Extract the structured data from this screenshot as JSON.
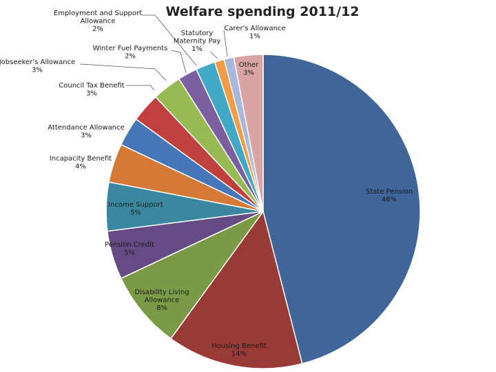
{
  "chart_data": {
    "type": "pie",
    "title": "Welfare spending 2011/12",
    "slices": [
      {
        "label": [
          "State Pension"
        ],
        "value": 46,
        "value_label": "46%",
        "color": "#3f6599"
      },
      {
        "label": [
          "Housing Benefit"
        ],
        "value": 14,
        "value_label": "14%",
        "color": "#9a3a37"
      },
      {
        "label": [
          "Disability Living",
          "Allowance"
        ],
        "value": 8,
        "value_label": "8%",
        "color": "#7b9a45"
      },
      {
        "label": [
          "Pension Credit"
        ],
        "value": 5,
        "value_label": "5%",
        "color": "#654b83"
      },
      {
        "label": [
          "Income Support"
        ],
        "value": 5,
        "value_label": "5%",
        "color": "#3a889f"
      },
      {
        "label": [
          "Incapacity Benefit"
        ],
        "value": 4,
        "value_label": "4%",
        "color": "#d57a35"
      },
      {
        "label": [
          "Attendance Allowance"
        ],
        "value": 3,
        "value_label": "3%",
        "color": "#4576b8"
      },
      {
        "label": [
          "Council Tax Benefit"
        ],
        "value": 3,
        "value_label": "3%",
        "color": "#c0403d"
      },
      {
        "label": [
          "Jobseeker's Allowance"
        ],
        "value": 3,
        "value_label": "3%",
        "color": "#98ba55"
      },
      {
        "label": [
          "Winter Fuel Payments"
        ],
        "value": 2,
        "value_label": "2%",
        "color": "#7c5fa0"
      },
      {
        "label": [
          "Employment and Support",
          "Allowance"
        ],
        "value": 2,
        "value_label": "2%",
        "color": "#41a9c5"
      },
      {
        "label": [
          "Statutory",
          "Maternity Pay"
        ],
        "value": 1,
        "value_label": "1%",
        "color": "#f39c45"
      },
      {
        "label": [
          "Carer's Allowance"
        ],
        "value": 1,
        "value_label": "1%",
        "color": "#a9b7da"
      },
      {
        "label": [
          "Other"
        ],
        "value": 3,
        "value_label": "3%",
        "color": "#d9a5a4"
      }
    ]
  }
}
